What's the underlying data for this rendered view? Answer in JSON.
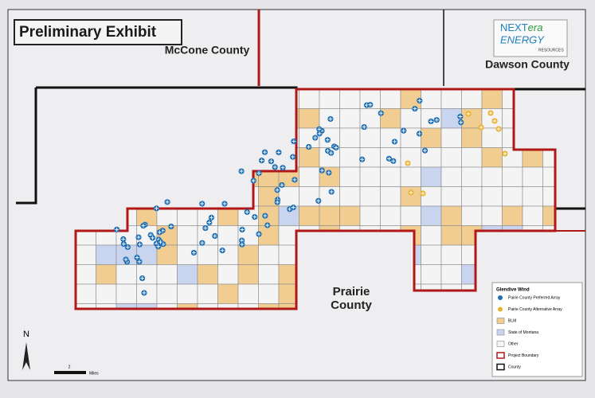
{
  "header": {
    "title": "Preliminary Exhibit"
  },
  "logo": {
    "next": "NEXT",
    "era": "era",
    "energy": "ENERGY",
    "resources": "RESOURCES"
  },
  "labels": {
    "mccone": "McCone County",
    "dawson": "Dawson County",
    "prairie": [
      "Prairie",
      "County"
    ]
  },
  "legend": {
    "title": "Glendive Wind",
    "items": [
      "Pairie County Preferred Array",
      "Pairie County Alternative Array",
      "BLM",
      "State of Montana",
      "Other",
      "Project Boundary",
      "County"
    ]
  },
  "north": "N",
  "scale": {
    "value": "2",
    "unit": "Miles"
  }
}
